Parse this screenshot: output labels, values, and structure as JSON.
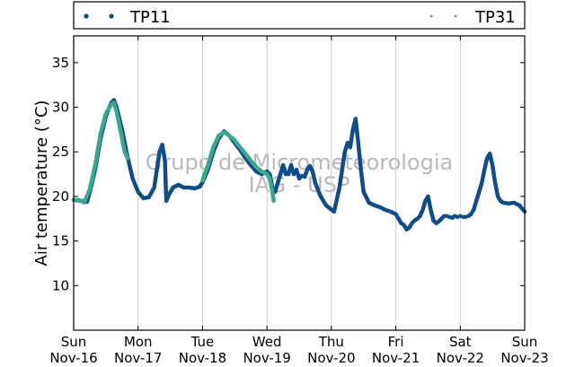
{
  "chart_data": {
    "type": "scatter",
    "ylabel": "Air temperature (°C)",
    "ylim": [
      5,
      38
    ],
    "yticks": [
      10,
      15,
      20,
      25,
      30,
      35
    ],
    "x_range_hours": [
      0,
      168
    ],
    "xticks": [
      {
        "day": "Sun",
        "date": "Nov-16",
        "hour": 0
      },
      {
        "day": "Mon",
        "date": "Nov-17",
        "hour": 24
      },
      {
        "day": "Tue",
        "date": "Nov-18",
        "hour": 48
      },
      {
        "day": "Wed",
        "date": "Nov-19",
        "hour": 72
      },
      {
        "day": "Thu",
        "date": "Nov-20",
        "hour": 96
      },
      {
        "day": "Fri",
        "date": "Nov-21",
        "hour": 120
      },
      {
        "day": "Sat",
        "date": "Nov-22",
        "hour": 144
      },
      {
        "day": "Sun",
        "date": "Nov-23",
        "hour": 168
      }
    ],
    "grid": "vertical",
    "legend_position": "top",
    "watermark": [
      "Grupo de Micrometeorologia",
      "IAG - USP"
    ],
    "series": [
      {
        "name": "TP11",
        "color": "#0f4c8a",
        "points": [
          [
            0,
            19.6
          ],
          [
            3,
            19.5
          ],
          [
            5,
            19.4
          ],
          [
            6,
            20.5
          ],
          [
            8,
            23
          ],
          [
            10,
            26.5
          ],
          [
            12,
            29
          ],
          [
            14,
            30.5
          ],
          [
            15,
            30.8
          ],
          [
            16,
            30
          ],
          [
            18,
            27.5
          ],
          [
            20,
            24.5
          ],
          [
            22,
            22
          ],
          [
            24,
            20.5
          ],
          [
            26,
            19.8
          ],
          [
            28,
            19.9
          ],
          [
            30,
            21
          ],
          [
            31,
            23
          ],
          [
            32,
            25
          ],
          [
            33,
            25.8
          ],
          [
            34,
            24
          ],
          [
            34.5,
            19.5
          ],
          [
            35.5,
            20.2
          ],
          [
            37,
            21
          ],
          [
            39,
            21.3
          ],
          [
            41,
            21
          ],
          [
            43,
            21
          ],
          [
            45,
            20.9
          ],
          [
            47,
            21.1
          ],
          [
            48,
            21.6
          ],
          [
            50,
            23
          ],
          [
            52,
            25
          ],
          [
            54,
            26.5
          ],
          [
            56,
            27.3
          ],
          [
            58,
            26.8
          ],
          [
            60,
            26
          ],
          [
            62,
            25.2
          ],
          [
            64,
            24.3
          ],
          [
            66,
            23.5
          ],
          [
            68,
            22.8
          ],
          [
            70,
            22.5
          ],
          [
            72,
            22.8
          ],
          [
            73,
            22.5
          ],
          [
            74,
            21
          ],
          [
            75,
            20.5
          ],
          [
            76,
            21.5
          ],
          [
            77,
            22.5
          ],
          [
            78,
            23.5
          ],
          [
            79,
            22.5
          ],
          [
            80,
            22.5
          ],
          [
            81,
            23.5
          ],
          [
            82,
            22.5
          ],
          [
            83,
            23
          ],
          [
            84,
            22
          ],
          [
            85,
            22.3
          ],
          [
            86,
            22.2
          ],
          [
            87,
            23
          ],
          [
            88,
            23.4
          ],
          [
            89,
            22.8
          ],
          [
            90,
            21.5
          ],
          [
            92,
            20
          ],
          [
            94,
            19
          ],
          [
            96,
            18.5
          ],
          [
            97,
            18.3
          ],
          [
            99,
            21
          ],
          [
            101,
            25
          ],
          [
            102,
            26
          ],
          [
            103,
            25.5
          ],
          [
            104,
            27.5
          ],
          [
            105,
            28.7
          ],
          [
            106,
            26
          ],
          [
            107,
            23
          ],
          [
            108,
            20.5
          ],
          [
            110,
            19.3
          ],
          [
            112,
            19
          ],
          [
            114,
            18.8
          ],
          [
            116,
            18.5
          ],
          [
            118,
            18.3
          ],
          [
            120,
            18
          ],
          [
            121,
            17.5
          ],
          [
            122,
            17
          ],
          [
            123,
            16.8
          ],
          [
            124,
            16.3
          ],
          [
            125,
            16.5
          ],
          [
            126,
            17
          ],
          [
            127,
            17.3
          ],
          [
            128,
            17.5
          ],
          [
            129,
            17.8
          ],
          [
            130,
            18.5
          ],
          [
            131,
            19.5
          ],
          [
            132,
            20
          ],
          [
            133,
            18.5
          ],
          [
            134,
            17.3
          ],
          [
            135,
            17
          ],
          [
            136,
            17.2
          ],
          [
            137,
            17.5
          ],
          [
            138,
            17.8
          ],
          [
            139,
            17.8
          ],
          [
            140,
            17.7
          ],
          [
            141,
            17.6
          ],
          [
            142,
            17.8
          ],
          [
            143,
            17.7
          ],
          [
            144,
            17.8
          ],
          [
            145,
            17.7
          ],
          [
            146,
            17.7
          ],
          [
            147,
            17.8
          ],
          [
            148,
            18
          ],
          [
            149,
            18.5
          ],
          [
            150,
            19.5
          ],
          [
            151,
            20.5
          ],
          [
            152,
            21.5
          ],
          [
            153,
            23
          ],
          [
            154,
            24.3
          ],
          [
            155,
            24.8
          ],
          [
            156,
            23.5
          ],
          [
            157,
            21.5
          ],
          [
            158,
            20
          ],
          [
            159,
            19.5
          ],
          [
            160,
            19.3
          ],
          [
            162,
            19.2
          ],
          [
            164,
            19.3
          ],
          [
            166,
            19
          ],
          [
            168,
            18.3
          ]
        ]
      },
      {
        "name": "TP31",
        "color": "#3aa88a",
        "points": [
          [
            0,
            19.6
          ],
          [
            2,
            19.6
          ],
          [
            4,
            19.3
          ],
          [
            6,
            20.8
          ],
          [
            8,
            23.5
          ],
          [
            10,
            27
          ],
          [
            12,
            29.3
          ],
          [
            14,
            30.3
          ],
          [
            15,
            30.5
          ],
          [
            16,
            29.5
          ],
          [
            17,
            28
          ],
          [
            18,
            26.5
          ],
          [
            19,
            25
          ],
          [
            20,
            24.3
          ],
          [
            48,
            21.8
          ],
          [
            50,
            23.5
          ],
          [
            52,
            25.5
          ],
          [
            54,
            26.8
          ],
          [
            56,
            27.2
          ],
          [
            58,
            26.8
          ],
          [
            60,
            26.3
          ],
          [
            62,
            25.5
          ],
          [
            64,
            24.8
          ],
          [
            66,
            24
          ],
          [
            68,
            23.3
          ],
          [
            70,
            22.8
          ],
          [
            72,
            22.5
          ],
          [
            73,
            22
          ],
          [
            74,
            20.5
          ],
          [
            74.5,
            19.5
          ]
        ]
      }
    ]
  }
}
